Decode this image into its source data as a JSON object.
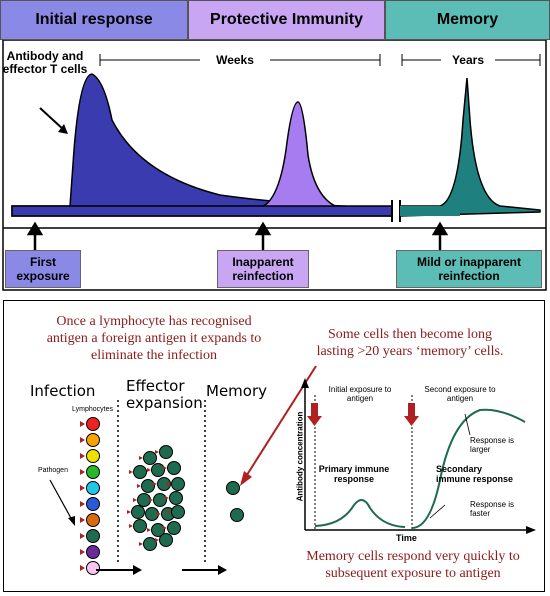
{
  "top_panel": {
    "headers": {
      "initial": "Initial response",
      "protective": "Protective Immunity",
      "memory": "Memory"
    },
    "antibody_label": "Antibody and effector T cells",
    "weeks_label": "Weeks",
    "years_label": "Years",
    "events": {
      "first": "First exposure",
      "inapparent": "Inapparent reinfection",
      "mild": "Mild or inapparent reinfection"
    },
    "colors": {
      "initial": "#8a8ae6",
      "protective": "#c9a6f4",
      "memory": "#5cbcb6",
      "peak1": "#3b3bb0",
      "peak2": "#a67cf0",
      "peak3": "#1f8080"
    }
  },
  "bottom_panel": {
    "text_left": "Once a lymphocyte has recognised antigen a foreign antigen it expands to eliminate the infection",
    "text_right": "Some cells then become long lasting >20 years ‘memory’ cells.",
    "text_bottom": "Memory cells respond very quickly to subsequent exposure to antigen",
    "col_infection": "Infection",
    "col_effector": "Effector expansion",
    "col_memory": "Memory",
    "lymphocytes_label": "Lymphocytes",
    "pathogen_label": "Pathogen",
    "lymphocyte_colors": [
      "#e22",
      "#f7a400",
      "#f0e000",
      "#2ab52a",
      "#22c6e8",
      "#2a5ad8",
      "#d86a10",
      "#1e6b50",
      "#6a2a9a",
      "#f7c6f0"
    ],
    "graph": {
      "ylabel": "Antibody concentration",
      "xlabel": "Time",
      "initial_exposure": "Initial exposure to antigen",
      "second_exposure": "Second exposure to antigen",
      "primary": "Primary immune response",
      "secondary": "Secondary immune response",
      "larger": "Response is larger",
      "faster": "Response is faster"
    }
  }
}
